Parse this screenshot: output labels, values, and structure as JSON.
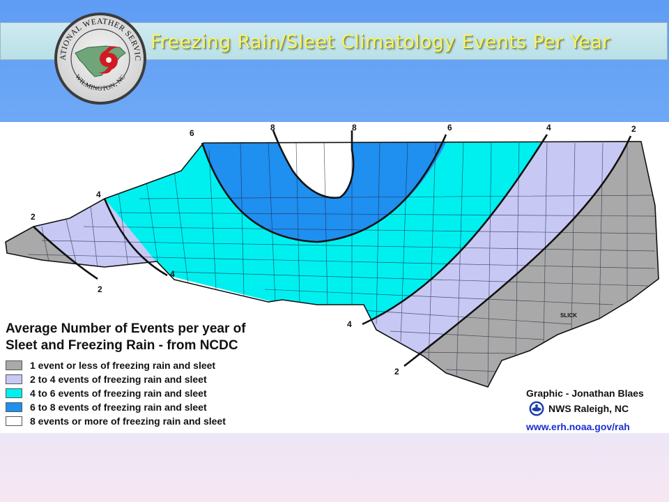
{
  "slide_title": "Freezing Rain/Sleet Climatology Events Per Year",
  "logo": {
    "ring_text": "NATIONAL WEATHER SERVICE",
    "office_text": "WILMINGTON, NC"
  },
  "map": {
    "colors": {
      "zone_1_or_less": "#a9a9a9",
      "zone_2_to_4": "#c8c8f4",
      "zone_4_to_6": "#00f0f0",
      "zone_6_to_8": "#1f8ff0",
      "zone_8_plus": "#ffffff"
    },
    "contour_labels": [
      "6",
      "8",
      "8",
      "6",
      "4",
      "2",
      "4",
      "2",
      "2",
      "4",
      "4",
      "2"
    ],
    "place_label": "SLICK"
  },
  "legend": {
    "title": "Average Number of Events per year of\nSleet and Freezing Rain - from NCDC",
    "items": [
      {
        "label": "1 event or less of freezing rain and sleet",
        "color": "#a9a9a9"
      },
      {
        "label": "2 to 4 events of freezing rain and sleet",
        "color": "#c8c8f4"
      },
      {
        "label": "4 to 6 events of freezing rain and sleet",
        "color": "#00f0f0"
      },
      {
        "label": "6 to 8 events of freezing rain and sleet",
        "color": "#1f8ff0"
      },
      {
        "label": "8 events or more of freezing rain and sleet",
        "color": "#ffffff"
      }
    ]
  },
  "credits": {
    "graphic": "Graphic - Jonathan Blaes",
    "office": "NWS Raleigh, NC",
    "url": "www.erh.noaa.gov/rah"
  }
}
